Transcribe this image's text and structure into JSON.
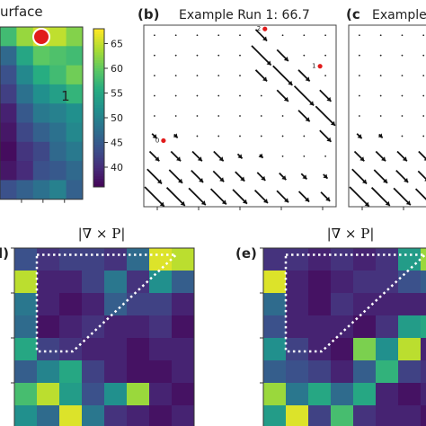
{
  "chart_data": [
    {
      "type": "heatmap",
      "id": "a",
      "title_fragment": "urface",
      "colormap": "viridis",
      "colorbar": {
        "min": 36,
        "max": 68,
        "ticks": [
          40,
          45,
          50,
          55,
          60,
          65
        ]
      },
      "annotation": "1",
      "grid_visible": [
        [
          58,
          63,
          66,
          65,
          62
        ],
        [
          47,
          55,
          60,
          59,
          58
        ],
        [
          44,
          51,
          56,
          58,
          61
        ],
        [
          42,
          48,
          52,
          54,
          57
        ],
        [
          39,
          45,
          49,
          50,
          52
        ],
        [
          38,
          43,
          46,
          48,
          51
        ],
        [
          37,
          41,
          43,
          47,
          49
        ],
        [
          38,
          40,
          44,
          45,
          47
        ],
        [
          44,
          46,
          48,
          50,
          46
        ]
      ],
      "marker": {
        "row": 0,
        "col": 2,
        "color": "#e11b1b"
      }
    },
    {
      "type": "quiver",
      "id": "b",
      "panel_label": "(b)",
      "title": "Example Run 1: 66.7",
      "point_labels": [
        "0",
        "1",
        "2"
      ],
      "point_color": "#e11b1b"
    },
    {
      "type": "quiver",
      "id": "c",
      "panel_label": "(c",
      "title": "Example"
    },
    {
      "type": "heatmap",
      "id": "d",
      "panel_label": "l)",
      "title": "|∇ × P|",
      "colormap": "viridis",
      "grid": [
        [
          0.25,
          0.15,
          0.2,
          0.2,
          0.15,
          0.35,
          0.95,
          0.9
        ],
        [
          0.9,
          0.1,
          0.1,
          0.2,
          0.4,
          0.15,
          0.5,
          0.3
        ],
        [
          0.4,
          0.1,
          0.05,
          0.1,
          0.3,
          0.2,
          0.2,
          0.1
        ],
        [
          0.35,
          0.05,
          0.1,
          0.15,
          0.1,
          0.1,
          0.15,
          0.05
        ],
        [
          0.6,
          0.2,
          0.15,
          0.1,
          0.1,
          0.05,
          0.1,
          0.1
        ],
        [
          0.3,
          0.45,
          0.6,
          0.2,
          0.1,
          0.05,
          0.05,
          0.1
        ],
        [
          0.7,
          0.9,
          0.55,
          0.25,
          0.5,
          0.85,
          0.1,
          0.05
        ],
        [
          0.5,
          0.35,
          0.95,
          0.4,
          0.15,
          0.1,
          0.05,
          0.1
        ]
      ]
    },
    {
      "type": "heatmap",
      "id": "e",
      "panel_label": "(e)",
      "title": "|∇ × P|",
      "colormap": "viridis",
      "grid": [
        [
          0.15,
          0.15,
          0.1,
          0.15,
          0.1,
          0.15,
          0.55,
          0.85
        ],
        [
          0.95,
          0.1,
          0.05,
          0.1,
          0.15,
          0.15,
          0.25,
          0.3
        ],
        [
          0.35,
          0.1,
          0.05,
          0.15,
          0.1,
          0.1,
          0.1,
          0.1
        ],
        [
          0.25,
          0.1,
          0.1,
          0.1,
          0.05,
          0.15,
          0.55,
          0.6
        ],
        [
          0.5,
          0.2,
          0.1,
          0.05,
          0.8,
          0.5,
          0.9,
          0.1
        ],
        [
          0.3,
          0.25,
          0.2,
          0.1,
          0.3,
          0.65,
          0.2,
          0.15
        ],
        [
          0.85,
          0.4,
          0.6,
          0.35,
          0.6,
          0.1,
          0.05,
          0.1
        ],
        [
          0.55,
          0.95,
          0.2,
          0.7,
          0.15,
          0.1,
          0.1,
          0.05
        ]
      ]
    }
  ]
}
